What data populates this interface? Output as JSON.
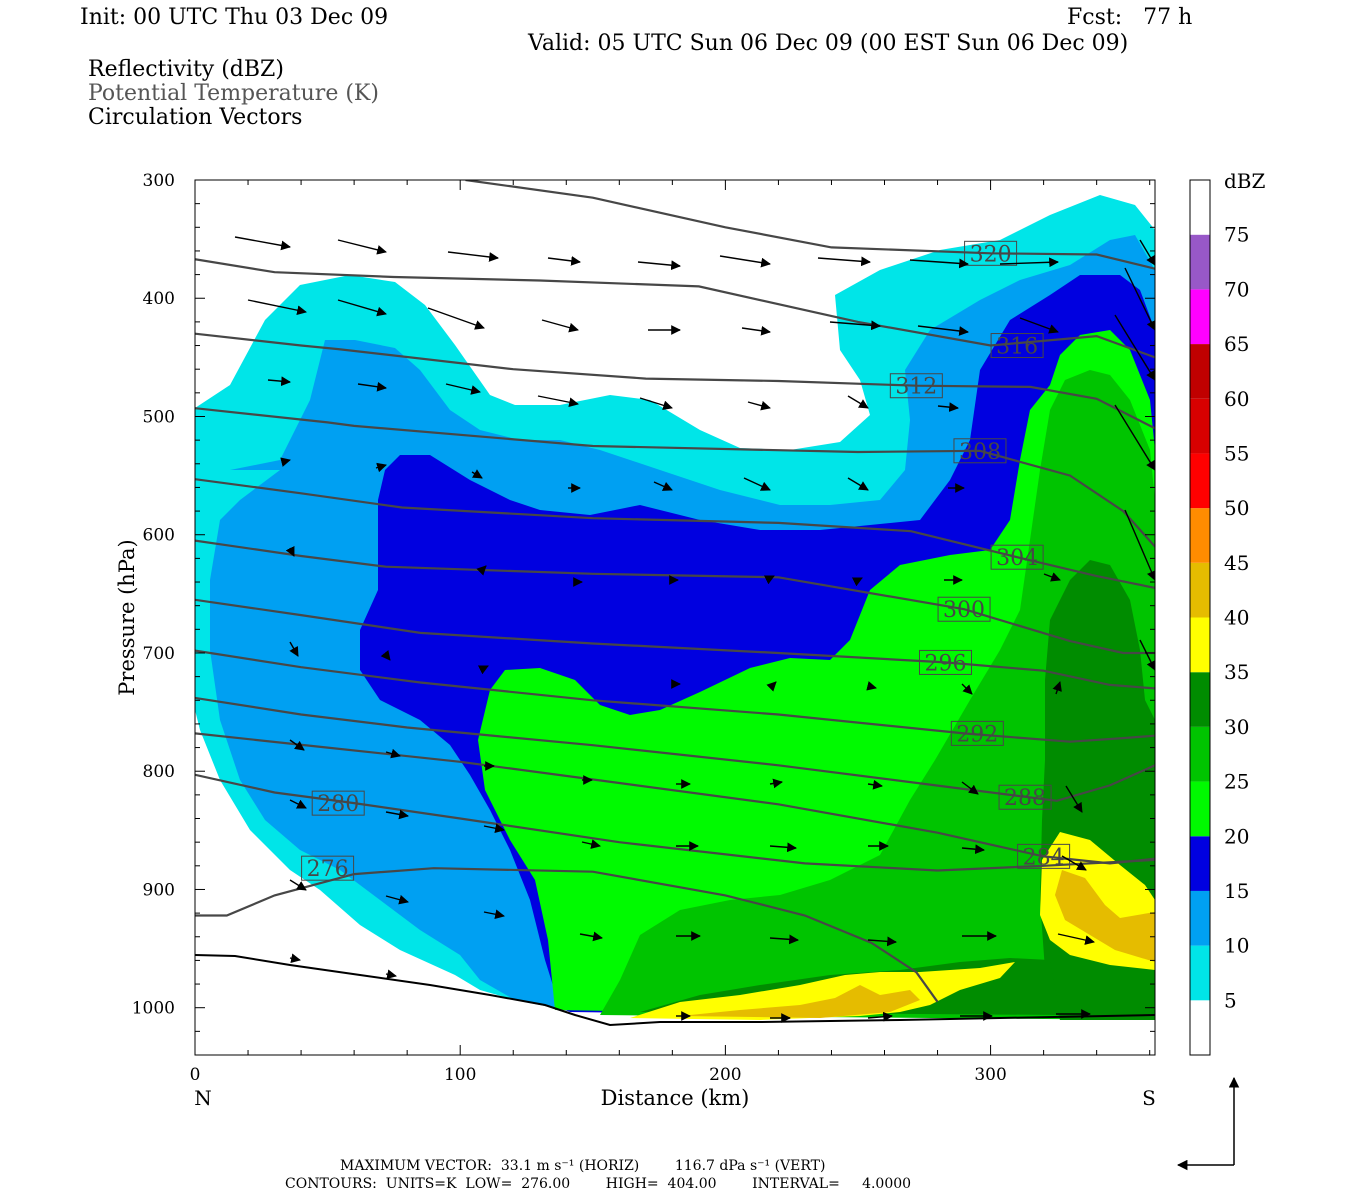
{
  "header": {
    "init": "Init: 00 UTC Thu 03 Dec 09",
    "fcst": "Fcst:   77 h",
    "valid": "Valid: 05 UTC Sun 06 Dec 09 (00 EST Sun 06 Dec 09)",
    "fields": [
      "Reflectivity (dBZ)",
      "Potential Temperature (K)",
      "Circulation Vectors"
    ]
  },
  "footer": {
    "max_vector_line": "MAXIMUM VECTOR:  33.1 m s⁻¹ (HORIZ)        116.7 dPa s⁻¹ (VERT)",
    "contours_line": "CONTOURS:  UNITS=K  LOW=  276.00        HIGH=  404.00        INTERVAL=     4.0000"
  },
  "colors": {
    "5": "#00e5e8",
    "10": "#00a0f2",
    "15": "#0000e0",
    "20": "#00fa00",
    "25": "#00c400",
    "30": "#008c00",
    "35": "#ffff00",
    "40": "#e5bc00",
    "45": "#ff8c00",
    "50": "#ff0000",
    "55": "#d80000",
    "60": "#c00000",
    "65": "#ff00ff",
    "70": "#9858c8",
    "contour": "#474747"
  },
  "chart_data": {
    "type": "heatmap",
    "title": "Reflectivity (dBZ)",
    "xlabel": "Distance (km)",
    "ylabel": "Pressure (hPa)",
    "xlim": [
      0,
      362
    ],
    "ylim": [
      1040,
      300
    ],
    "x_ticks": [
      0,
      100,
      200,
      300
    ],
    "y_ticks": [
      300,
      400,
      500,
      600,
      700,
      800,
      900,
      1000
    ],
    "x_end_labels": {
      "left": "N",
      "right": "S"
    },
    "colorbar": {
      "unit": "dBZ",
      "levels": [
        5,
        10,
        15,
        20,
        25,
        30,
        35,
        40,
        45,
        50,
        55,
        60,
        65,
        70,
        75
      ]
    },
    "theta_contours": [
      {
        "label": "276",
        "label_at": [
          50,
          882
        ],
        "points": [
          [
            0,
            922
          ],
          [
            12,
            922
          ],
          [
            30,
            905
          ],
          [
            60,
            887
          ],
          [
            90,
            882
          ],
          [
            150,
            885
          ],
          [
            200,
            905
          ],
          [
            230,
            922
          ],
          [
            255,
            945
          ],
          [
            272,
            970
          ],
          [
            280,
            995
          ]
        ]
      },
      {
        "label": "280",
        "label_at": [
          54,
          827
        ],
        "points": [
          [
            0,
            803
          ],
          [
            30,
            818
          ],
          [
            60,
            827
          ],
          [
            100,
            840
          ],
          [
            160,
            860
          ],
          [
            230,
            878
          ],
          [
            280,
            884
          ],
          [
            320,
            880
          ],
          [
            362,
            875
          ]
        ]
      },
      {
        "label": "284",
        "label_at": [
          320,
          872
        ],
        "points": [
          [
            0,
            768
          ],
          [
            50,
            780
          ],
          [
            100,
            792
          ],
          [
            160,
            810
          ],
          [
            220,
            828
          ],
          [
            280,
            852
          ],
          [
            320,
            872
          ],
          [
            345,
            878
          ],
          [
            362,
            874
          ]
        ]
      },
      {
        "label": "288",
        "label_at": [
          313,
          822
        ],
        "points": [
          [
            0,
            738
          ],
          [
            40,
            752
          ],
          [
            80,
            763
          ],
          [
            150,
            778
          ],
          [
            220,
            795
          ],
          [
            290,
            815
          ],
          [
            325,
            825
          ],
          [
            345,
            812
          ],
          [
            362,
            795
          ]
        ]
      },
      {
        "label": "292",
        "label_at": [
          295,
          768
        ],
        "points": [
          [
            0,
            698
          ],
          [
            40,
            712
          ],
          [
            85,
            725
          ],
          [
            150,
            740
          ],
          [
            220,
            752
          ],
          [
            290,
            768
          ],
          [
            330,
            775
          ],
          [
            350,
            772
          ],
          [
            362,
            770
          ]
        ]
      },
      {
        "label": "296",
        "label_at": [
          283,
          708
        ],
        "points": [
          [
            0,
            655
          ],
          [
            40,
            668
          ],
          [
            85,
            683
          ],
          [
            150,
            692
          ],
          [
            220,
            700
          ],
          [
            283,
            708
          ],
          [
            320,
            715
          ],
          [
            345,
            727
          ],
          [
            362,
            730
          ]
        ]
      },
      {
        "label": "300",
        "label_at": [
          290,
          663
        ],
        "points": [
          [
            0,
            605
          ],
          [
            40,
            618
          ],
          [
            72,
            627
          ],
          [
            150,
            633
          ],
          [
            220,
            636
          ],
          [
            290,
            663
          ],
          [
            330,
            690
          ],
          [
            350,
            700
          ],
          [
            362,
            700
          ]
        ]
      },
      {
        "label": "304",
        "label_at": [
          310,
          619
        ],
        "points": [
          [
            0,
            553
          ],
          [
            40,
            565
          ],
          [
            78,
            577
          ],
          [
            150,
            586
          ],
          [
            220,
            590
          ],
          [
            270,
            597
          ],
          [
            310,
            619
          ],
          [
            340,
            635
          ],
          [
            362,
            645
          ]
        ]
      },
      {
        "label": "308",
        "label_at": [
          296,
          529
        ],
        "points": [
          [
            0,
            493
          ],
          [
            50,
            505
          ],
          [
            60,
            508
          ],
          [
            150,
            525
          ],
          [
            250,
            530
          ],
          [
            296,
            529
          ],
          [
            330,
            550
          ],
          [
            350,
            580
          ],
          [
            362,
            610
          ]
        ]
      },
      {
        "label": "312",
        "label_at": [
          272,
          474
        ],
        "points": [
          [
            0,
            430
          ],
          [
            40,
            440
          ],
          [
            54,
            443
          ],
          [
            120,
            460
          ],
          [
            170,
            468
          ],
          [
            220,
            470
          ],
          [
            272,
            474
          ],
          [
            315,
            475
          ],
          [
            340,
            485
          ],
          [
            362,
            510
          ]
        ]
      },
      {
        "label": "316",
        "label_at": [
          310,
          440
        ],
        "points": [
          [
            0,
            367
          ],
          [
            30,
            378
          ],
          [
            75,
            382
          ],
          [
            130,
            385
          ],
          [
            190,
            390
          ],
          [
            250,
            420
          ],
          [
            300,
            440
          ],
          [
            340,
            432
          ],
          [
            362,
            450
          ]
        ]
      },
      {
        "label": "320",
        "label_at": [
          300,
          362
        ],
        "points": [
          [
            102,
            300
          ],
          [
            150,
            315
          ],
          [
            200,
            340
          ],
          [
            240,
            357
          ],
          [
            300,
            362
          ],
          [
            340,
            363
          ],
          [
            362,
            375
          ]
        ]
      }
    ]
  }
}
